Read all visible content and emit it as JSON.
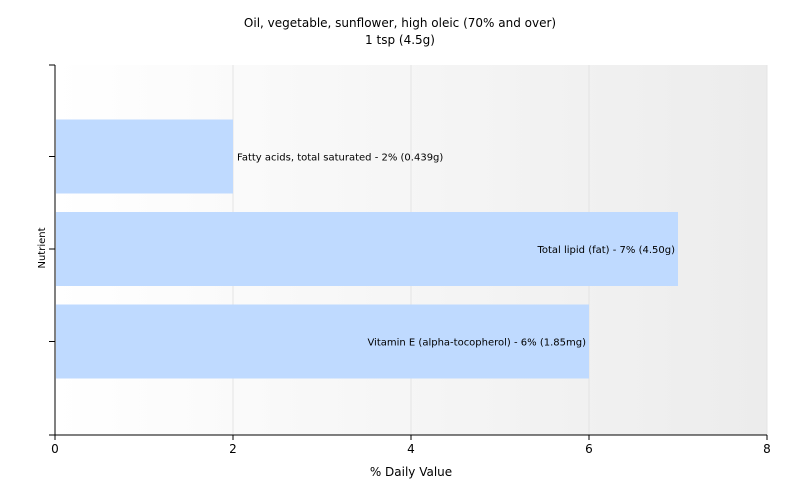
{
  "chart_data": {
    "type": "bar",
    "orientation": "horizontal",
    "title": "Oil, vegetable, sunflower, high oleic (70% and over)",
    "subtitle": "1 tsp (4.5g)",
    "xlabel": "% Daily Value",
    "ylabel": "Nutrient",
    "xlim": [
      0,
      8
    ],
    "xticks": [
      "0",
      "2",
      "4",
      "6",
      "8"
    ],
    "grid": true,
    "bar_color": "#bfdaff",
    "categories": [
      "Fatty acids, total saturated",
      "Total lipid (fat)",
      "Vitamin E (alpha-tocopherol)"
    ],
    "values": [
      2,
      7,
      6
    ],
    "data_labels": [
      "Fatty acids, total saturated - 2% (0.439g)",
      "Total lipid (fat) - 7% (4.50g)",
      "Vitamin E (alpha-tocopherol) - 6% (1.85mg)"
    ]
  }
}
